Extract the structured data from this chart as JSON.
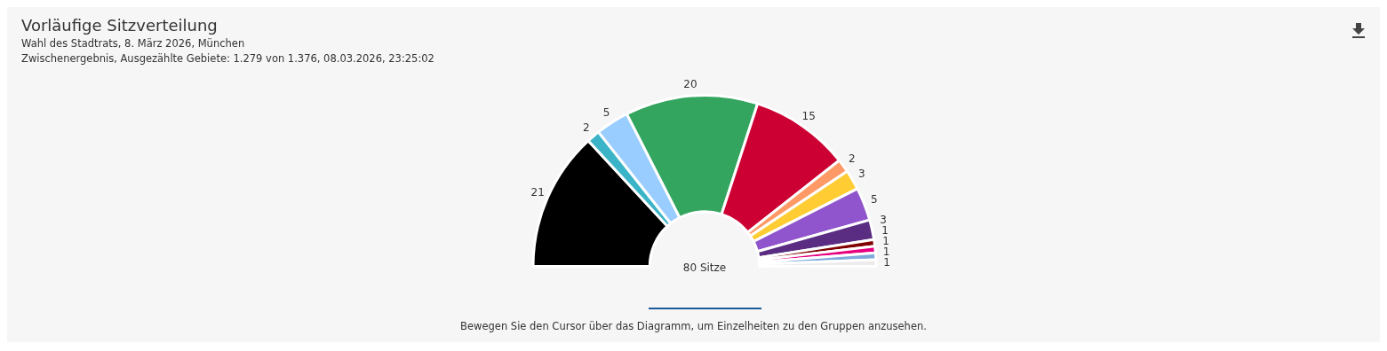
{
  "chart_data": {
    "type": "donut",
    "title": "Vorläufige Sitzverteilung",
    "subtitle": "Wahl des Stadtrats, 8. März 2026, München\nZwischenergebnis, Ausgezählte Gebiete: 1.279 von 1.376, 08.03.2026, 23:25:02",
    "categories": [
      null,
      null,
      null,
      null,
      null,
      null,
      null,
      null,
      null,
      null,
      null,
      null,
      null
    ],
    "values": [
      21,
      2,
      5,
      20,
      15,
      2,
      3,
      5,
      3,
      1,
      1,
      1,
      1
    ],
    "colors": [
      "#000000",
      "#3cb4c8",
      "#99ccff",
      "#33a55f",
      "#cc0033",
      "#ff9966",
      "#ffcc33",
      "#9055cc",
      "#5a2d82",
      "#800000",
      "#e6007e",
      "#80aadc",
      "#ebebeb"
    ],
    "data_labels": true,
    "legend": false,
    "annotations": [
      "80 Sitze",
      "Bewegen Sie den Cursor über das Diagramm, um Einzelheiten zu den Gruppen anzusehen."
    ]
  }
}
